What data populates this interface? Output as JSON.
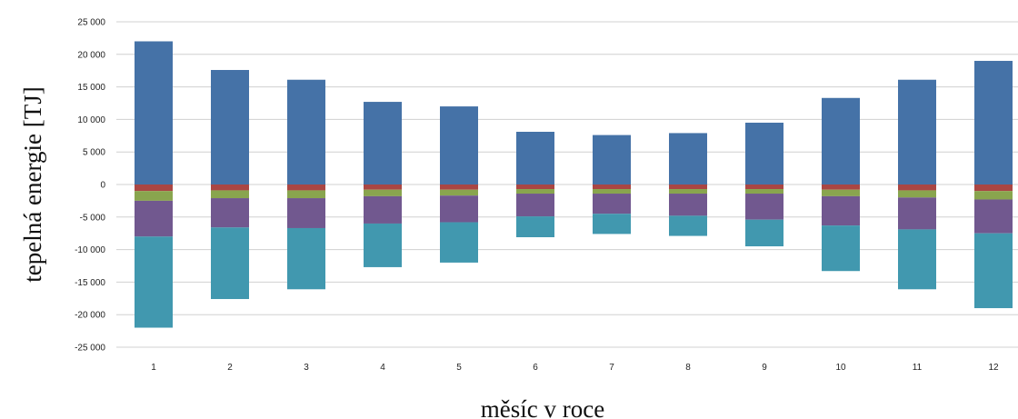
{
  "chart_data": {
    "type": "bar",
    "stacked": true,
    "xlabel": "měsíc v roce",
    "ylabel": "tepelná energie [TJ]",
    "categories": [
      "1",
      "2",
      "3",
      "4",
      "5",
      "6",
      "7",
      "8",
      "9",
      "10",
      "11",
      "12"
    ],
    "ylim": [
      -25000,
      25000
    ],
    "yticks": [
      25000,
      20000,
      15000,
      10000,
      5000,
      0,
      -5000,
      -10000,
      -15000,
      -20000,
      -25000
    ],
    "ytick_labels": [
      "25 000",
      "20 000",
      "15 000",
      "10 000",
      "5 000",
      "0",
      "-5 000",
      "-10 000",
      "-15 000",
      "-20 000",
      "-25 000"
    ],
    "grid": true,
    "legend": "none",
    "series": [
      {
        "color": "#4572A7",
        "values": [
          22000,
          17600,
          16100,
          12700,
          12000,
          8100,
          7600,
          7900,
          9500,
          13300,
          16100,
          19000
        ]
      },
      {
        "color": "#AA4643",
        "values": [
          -1000,
          -900,
          -900,
          -800,
          -800,
          -700,
          -700,
          -700,
          -700,
          -800,
          -900,
          -1000
        ]
      },
      {
        "color": "#89A54E",
        "values": [
          -1500,
          -1200,
          -1200,
          -1000,
          -900,
          -700,
          -700,
          -700,
          -700,
          -1000,
          -1100,
          -1300
        ]
      },
      {
        "color": "#71588F",
        "values": [
          -5500,
          -4500,
          -4600,
          -4200,
          -4100,
          -3500,
          -3100,
          -3400,
          -4000,
          -4500,
          -4900,
          -5200
        ]
      },
      {
        "color": "#4198AF",
        "values": [
          -14000,
          -11000,
          -9400,
          -6700,
          -6200,
          -3200,
          -3100,
          -3100,
          -4100,
          -7000,
          -9200,
          -11500
        ]
      }
    ]
  }
}
